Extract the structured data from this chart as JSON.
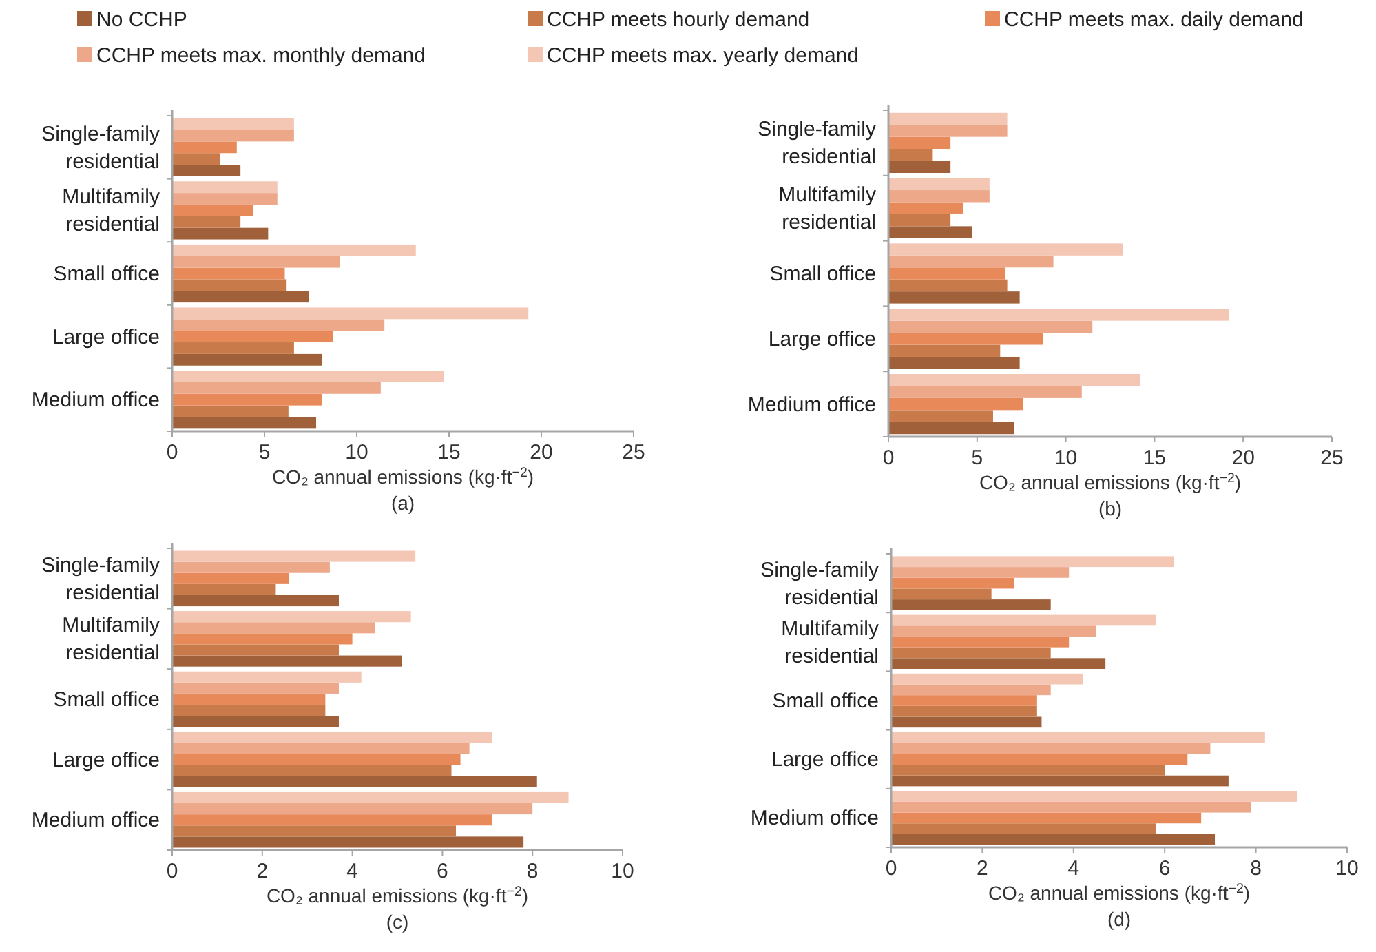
{
  "chart_data": [
    {
      "type": "bar",
      "orientation": "horizontal",
      "legend": "top",
      "categories": [
        "Single-family residential",
        "Multifamily residential",
        "Small office",
        "Large office",
        "Medium office"
      ],
      "xlabel": "CO₂ annual emissions (kg·ft$^{−2}$)",
      "annotations": [
        "(a)"
      ],
      "xlim": [
        0,
        25
      ],
      "xticks": [
        0,
        5,
        10,
        15,
        20,
        25
      ],
      "grid": false,
      "series": [
        {
          "name": "No CCHP",
          "color": "#a0613a",
          "values": [
            3.7,
            5.2,
            7.4,
            8.1,
            7.8
          ]
        },
        {
          "name": "CCHP meets hourly demand",
          "color": "#c87a4a",
          "values": [
            2.6,
            3.7,
            6.2,
            6.6,
            6.3
          ]
        },
        {
          "name": "CCHP meets max. daily demand",
          "color": "#e8895a",
          "values": [
            3.5,
            4.4,
            6.1,
            8.7,
            8.1
          ]
        },
        {
          "name": "CCHP meets max. monthly demand",
          "color": "#eda88a",
          "values": [
            6.6,
            5.7,
            9.1,
            11.5,
            11.3
          ]
        },
        {
          "name": "CCHP meets max. yearly demand",
          "color": "#f4c6b4",
          "values": [
            6.6,
            5.7,
            13.2,
            19.3,
            14.7
          ]
        }
      ]
    },
    {
      "type": "bar",
      "orientation": "horizontal",
      "categories": [
        "Single-family residential",
        "Multifamily residential",
        "Small office",
        "Large office",
        "Medium office"
      ],
      "xlabel": "CO₂ annual emissions (kg·ft$^{−2}$)",
      "annotations": [
        "(b)"
      ],
      "xlim": [
        0,
        25
      ],
      "xticks": [
        0,
        5,
        10,
        15,
        20,
        25
      ],
      "grid": false,
      "series": [
        {
          "color": "#a0613a",
          "values": [
            3.5,
            4.7,
            7.4,
            7.4,
            7.1
          ]
        },
        {
          "color": "#c87a4a",
          "values": [
            2.5,
            3.5,
            6.7,
            6.3,
            5.9
          ]
        },
        {
          "color": "#e8895a",
          "values": [
            3.5,
            4.2,
            6.6,
            8.7,
            7.6
          ]
        },
        {
          "color": "#eda88a",
          "values": [
            6.7,
            5.7,
            9.3,
            11.5,
            10.9
          ]
        },
        {
          "color": "#f4c6b4",
          "values": [
            6.7,
            5.7,
            13.2,
            19.2,
            14.2
          ]
        }
      ]
    },
    {
      "type": "bar",
      "orientation": "horizontal",
      "categories": [
        "Single-family residential",
        "Multifamily residential",
        "Small office",
        "Large office",
        "Medium office"
      ],
      "xlabel": "CO₂ annual emissions (kg·ft$^{−2}$)",
      "annotations": [
        "(c)"
      ],
      "xlim": [
        0,
        10
      ],
      "xticks": [
        0,
        2,
        4,
        6,
        8,
        10
      ],
      "grid": false,
      "series": [
        {
          "color": "#a0613a",
          "values": [
            3.7,
            5.1,
            3.7,
            8.1,
            7.8
          ]
        },
        {
          "color": "#c87a4a",
          "values": [
            2.3,
            3.7,
            3.4,
            6.2,
            6.3
          ]
        },
        {
          "color": "#e8895a",
          "values": [
            2.6,
            4.0,
            3.4,
            6.4,
            7.1
          ]
        },
        {
          "color": "#eda88a",
          "values": [
            3.5,
            4.5,
            3.7,
            6.6,
            8.0
          ]
        },
        {
          "color": "#f4c6b4",
          "values": [
            5.4,
            5.3,
            4.2,
            7.1,
            8.8
          ]
        }
      ]
    },
    {
      "type": "bar",
      "orientation": "horizontal",
      "categories": [
        "Single-family residential",
        "Multifamily residential",
        "Small office",
        "Large office",
        "Medium office"
      ],
      "xlabel": "CO₂ annual emissions (kg·ft$^{−2}$)",
      "annotations": [
        "(d)"
      ],
      "xlim": [
        0,
        10
      ],
      "xticks": [
        0,
        2,
        4,
        6,
        8,
        10
      ],
      "grid": false,
      "series": [
        {
          "color": "#a0613a",
          "values": [
            3.5,
            4.7,
            3.3,
            7.4,
            7.1
          ]
        },
        {
          "color": "#c87a4a",
          "values": [
            2.2,
            3.5,
            3.2,
            6.0,
            5.8
          ]
        },
        {
          "color": "#e8895a",
          "values": [
            2.7,
            3.9,
            3.2,
            6.5,
            6.8
          ]
        },
        {
          "color": "#eda88a",
          "values": [
            3.9,
            4.5,
            3.5,
            7.0,
            7.9
          ]
        },
        {
          "color": "#f4c6b4",
          "values": [
            6.2,
            5.8,
            4.2,
            8.2,
            8.9
          ]
        }
      ]
    }
  ]
}
